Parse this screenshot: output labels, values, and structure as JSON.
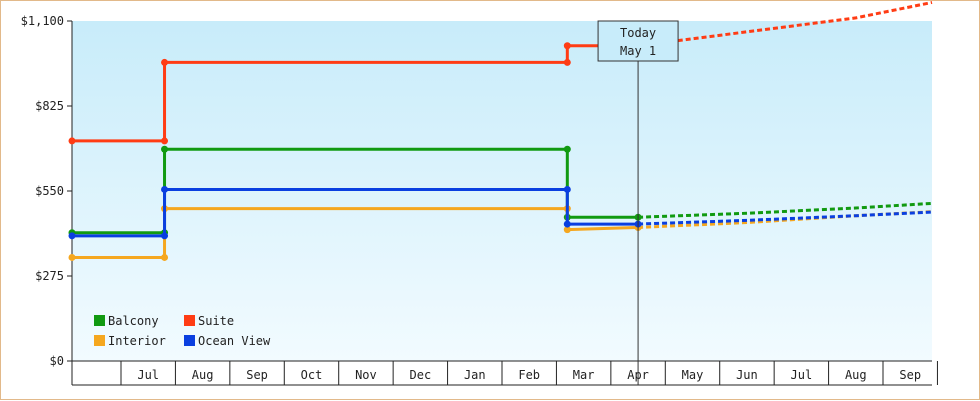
{
  "chart_data": {
    "type": "line",
    "title": "",
    "xlabel": "",
    "ylabel": "",
    "ylim": [
      0,
      1100
    ],
    "yticks": [
      0,
      275,
      550,
      825,
      1100
    ],
    "ytick_labels": [
      "$0",
      "$275",
      "$550",
      "$825",
      "$1,100"
    ],
    "x_months": [
      "Jul",
      "Aug",
      "Sep",
      "Oct",
      "Nov",
      "Dec",
      "Jan",
      "Feb",
      "Mar",
      "Apr",
      "May",
      "Jun",
      "Jul",
      "Aug",
      "Sep"
    ],
    "x_range": [
      -0.4,
      15.4
    ],
    "today": {
      "x": 10.0,
      "line1": "Today",
      "line2": "May 1"
    },
    "legend": {
      "placement": "bottom-left"
    },
    "series": [
      {
        "name": "Balcony",
        "color": "#119a11",
        "points": [
          [
            -0.4,
            415
          ],
          [
            1.3,
            415
          ],
          [
            1.3,
            685
          ],
          [
            8.7,
            685
          ],
          [
            8.7,
            465
          ],
          [
            10.0,
            465
          ]
        ],
        "forecast": [
          [
            10.0,
            465
          ],
          [
            12.0,
            478
          ],
          [
            14.0,
            495
          ],
          [
            15.4,
            510
          ]
        ]
      },
      {
        "name": "Suite",
        "color": "#ff3c14",
        "points": [
          [
            -0.4,
            712
          ],
          [
            1.3,
            712
          ],
          [
            1.3,
            966
          ],
          [
            8.7,
            966
          ],
          [
            8.7,
            1020
          ],
          [
            10.0,
            1020
          ]
        ],
        "forecast": [
          [
            10.0,
            1020
          ],
          [
            12.0,
            1065
          ],
          [
            14.0,
            1110
          ],
          [
            15.4,
            1160
          ]
        ]
      },
      {
        "name": "Interior",
        "color": "#f5a71f",
        "points": [
          [
            -0.4,
            335
          ],
          [
            1.3,
            335
          ],
          [
            1.3,
            493
          ],
          [
            8.7,
            493
          ],
          [
            8.7,
            425
          ],
          [
            10.0,
            432
          ]
        ],
        "forecast": [
          [
            10.0,
            432
          ],
          [
            12.0,
            448
          ],
          [
            14.0,
            470
          ],
          [
            15.4,
            483
          ]
        ]
      },
      {
        "name": "Ocean View",
        "color": "#0a3fe0",
        "points": [
          [
            -0.4,
            405
          ],
          [
            1.3,
            405
          ],
          [
            1.3,
            555
          ],
          [
            8.7,
            555
          ],
          [
            8.7,
            443
          ],
          [
            10.0,
            443
          ]
        ],
        "forecast": [
          [
            10.0,
            443
          ],
          [
            12.0,
            455
          ],
          [
            14.0,
            470
          ],
          [
            15.4,
            482
          ]
        ]
      }
    ]
  }
}
